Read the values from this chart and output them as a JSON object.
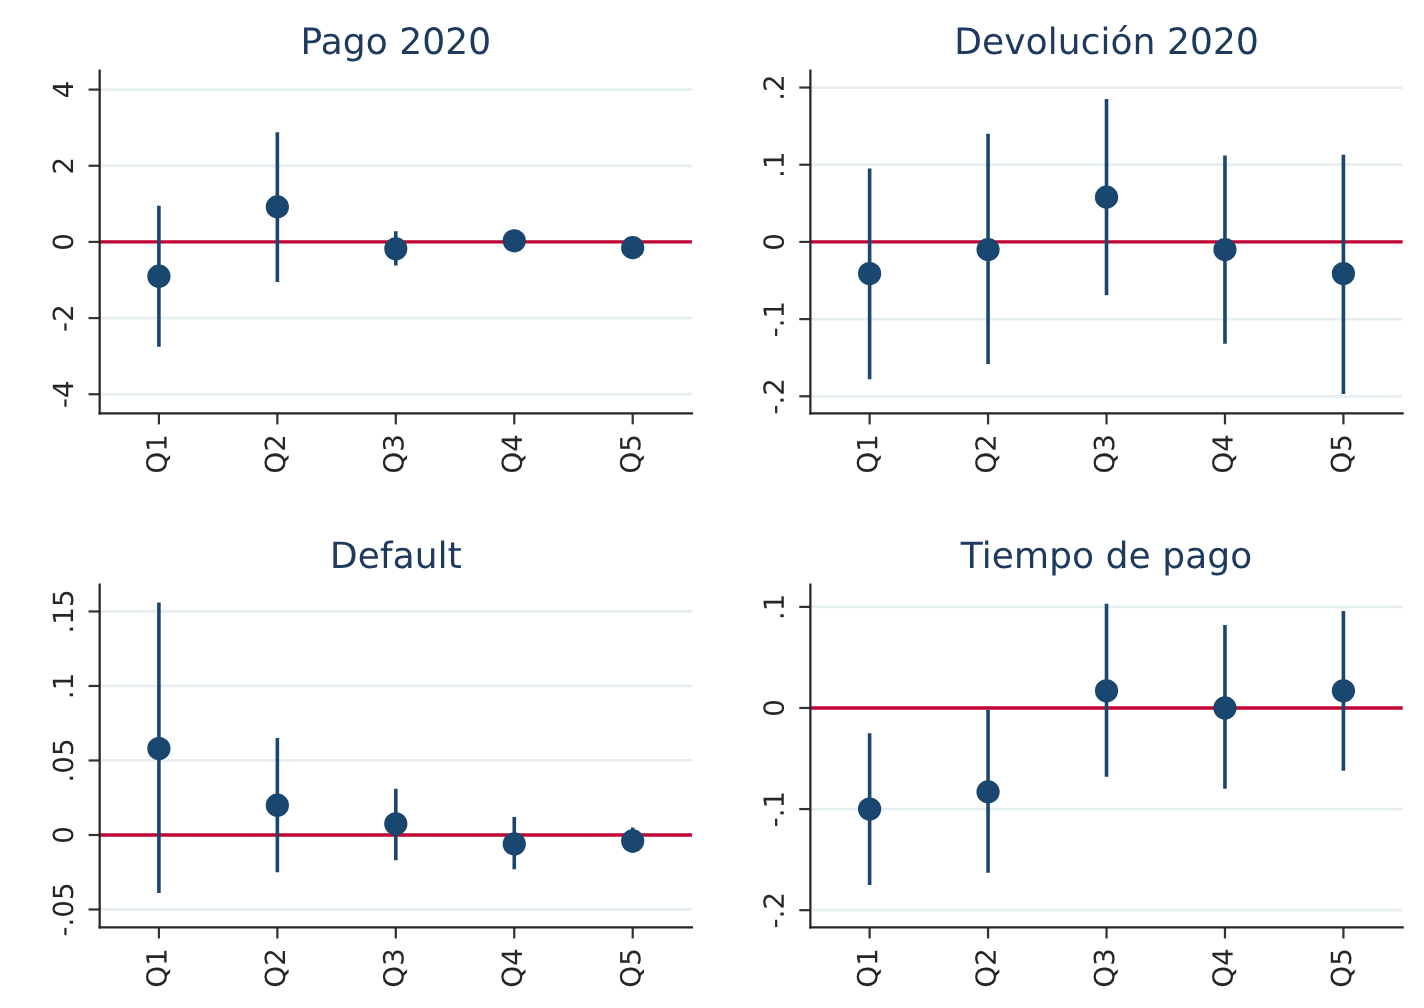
{
  "chart_data": [
    {
      "type": "scatter",
      "title": "Pago 2020",
      "categories": [
        "Q1",
        "Q2",
        "Q3",
        "Q4",
        "Q5"
      ],
      "values": [
        -0.9,
        0.92,
        -0.18,
        0.03,
        -0.15
      ],
      "errors": [
        [
          -2.75,
          0.95
        ],
        [
          -1.05,
          2.88
        ],
        [
          -0.62,
          0.28
        ],
        [
          -0.25,
          0.32
        ],
        [
          -0.32,
          0.05
        ]
      ],
      "color": "#1a476f",
      "marker": "circle",
      "ylim": [
        -4.5,
        4.5
      ],
      "yticks": [
        -4,
        -2,
        0,
        2,
        4
      ],
      "grid": "y",
      "ref_lines": [
        {
          "axis": "y",
          "value": 0,
          "color": "#c10534"
        }
      ]
    },
    {
      "type": "scatter",
      "title": "Devolución 2020",
      "categories": [
        "Q1",
        "Q2",
        "Q3",
        "Q4",
        "Q5"
      ],
      "values": [
        -0.041,
        -0.01,
        0.058,
        -0.01,
        -0.041
      ],
      "errors": [
        [
          -0.178,
          0.095
        ],
        [
          -0.158,
          0.14
        ],
        [
          -0.069,
          0.185
        ],
        [
          -0.132,
          0.112
        ],
        [
          -0.197,
          0.113
        ]
      ],
      "color": "#1a476f",
      "marker": "circle",
      "ylim": [
        -0.222,
        0.222
      ],
      "yticks": [
        {
          "value": -0.2,
          "label": "-.2"
        },
        {
          "value": -0.1,
          "label": "-.1"
        },
        0,
        {
          "value": 0.1,
          "label": ".1"
        },
        {
          "value": 0.2,
          "label": ".2"
        }
      ],
      "grid": "y",
      "ref_lines": [
        {
          "axis": "y",
          "value": 0,
          "color": "#c10534"
        }
      ]
    },
    {
      "type": "scatter",
      "title": "Default",
      "categories": [
        "Q1",
        "Q2",
        "Q3",
        "Q4",
        "Q5"
      ],
      "values": [
        0.058,
        0.02,
        0.0075,
        -0.006,
        -0.004
      ],
      "errors": [
        [
          -0.039,
          0.156
        ],
        [
          -0.025,
          0.065
        ],
        [
          -0.017,
          0.031
        ],
        [
          -0.023,
          0.012
        ],
        [
          -0.012,
          0.005
        ]
      ],
      "color": "#1a476f",
      "marker": "circle",
      "ylim": [
        -0.062,
        0.168
      ],
      "yticks": [
        {
          "value": -0.05,
          "label": "-.05"
        },
        0,
        {
          "value": 0.05,
          "label": ".05"
        },
        {
          "value": 0.1,
          "label": ".1"
        },
        {
          "value": 0.15,
          "label": ".15"
        }
      ],
      "grid": "y",
      "ref_lines": [
        {
          "axis": "y",
          "value": 0,
          "color": "#c10534"
        }
      ]
    },
    {
      "type": "scatter",
      "title": "Tiempo de pago",
      "categories": [
        "Q1",
        "Q2",
        "Q3",
        "Q4",
        "Q5"
      ],
      "values": [
        -0.1,
        -0.083,
        0.017,
        0,
        0.017
      ],
      "errors": [
        [
          -0.175,
          -0.025
        ],
        [
          -0.163,
          -0.002
        ],
        [
          -0.068,
          0.103
        ],
        [
          -0.08,
          0.082
        ],
        [
          -0.062,
          0.096
        ]
      ],
      "color": "#1a476f",
      "marker": "circle",
      "ylim": [
        -0.217,
        0.122
      ],
      "yticks": [
        {
          "value": -0.2,
          "label": "-.2"
        },
        {
          "value": -0.1,
          "label": "-.1"
        },
        0,
        {
          "value": 0.1,
          "label": ".1"
        }
      ],
      "grid": "y",
      "ref_lines": [
        {
          "axis": "y",
          "value": 0,
          "color": "#c10534"
        }
      ]
    }
  ]
}
